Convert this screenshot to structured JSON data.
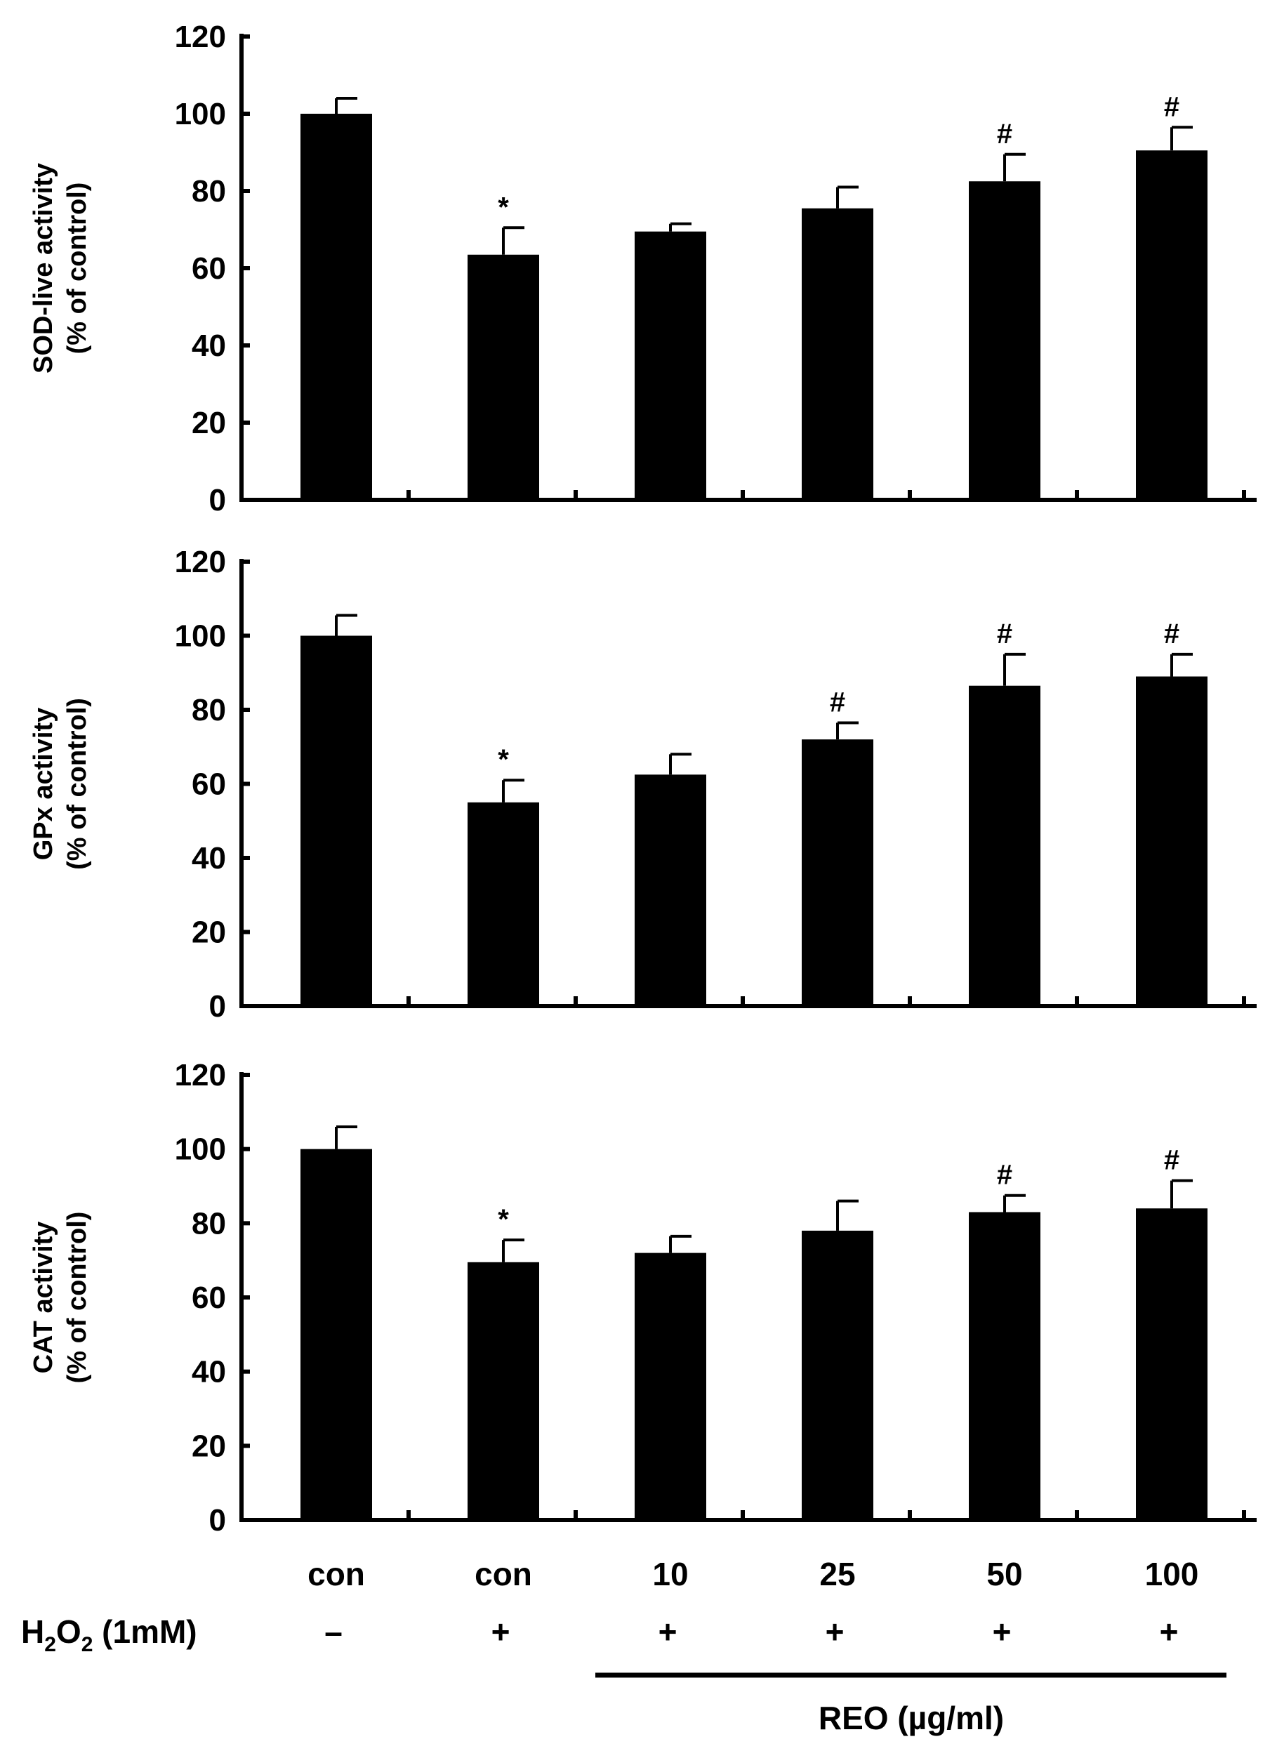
{
  "chart_data": [
    {
      "type": "bar",
      "ylabel_line1": "SOD-live activity",
      "ylabel_line2": "(% of control)",
      "ylim": [
        0,
        120
      ],
      "yticks": [
        0,
        20,
        40,
        60,
        80,
        100,
        120
      ],
      "categories": [
        "con",
        "con",
        "10",
        "25",
        "50",
        "100"
      ],
      "values": [
        100,
        63.5,
        69.5,
        75.5,
        82.5,
        90.5
      ],
      "errors": [
        4,
        7,
        2,
        5.5,
        7,
        6
      ],
      "annotations": [
        "",
        "*",
        "",
        "",
        "#",
        "#"
      ]
    },
    {
      "type": "bar",
      "ylabel_line1": "GPx  activity",
      "ylabel_line2": "(% of control)",
      "ylim": [
        0,
        120
      ],
      "yticks": [
        0,
        20,
        40,
        60,
        80,
        100,
        120
      ],
      "categories": [
        "con",
        "con",
        "10",
        "25",
        "50",
        "100"
      ],
      "values": [
        100,
        55,
        62.5,
        72,
        86.5,
        89
      ],
      "errors": [
        5.5,
        6,
        5.5,
        4.5,
        8.5,
        6
      ],
      "annotations": [
        "",
        "*",
        "",
        "#",
        "#",
        "#"
      ]
    },
    {
      "type": "bar",
      "ylabel_line1": "CAT activity",
      "ylabel_line2": "(% of control)",
      "ylim": [
        0,
        120
      ],
      "yticks": [
        0,
        20,
        40,
        60,
        80,
        100,
        120
      ],
      "categories": [
        "con",
        "con",
        "10",
        "25",
        "50",
        "100"
      ],
      "values": [
        100,
        69.5,
        72,
        78,
        83,
        84
      ],
      "errors": [
        6,
        6,
        4.5,
        8,
        4.5,
        7.5
      ],
      "annotations": [
        "",
        "*",
        "",
        "",
        "#",
        "#"
      ]
    }
  ],
  "x_axis": {
    "categories": [
      "con",
      "con",
      "10",
      "25",
      "50",
      "100"
    ],
    "h2o2_label_main": "H",
    "h2o2_label_sub1": "2",
    "h2o2_label_mid": "O",
    "h2o2_label_sub2": "2",
    "h2o2_label_rest": " (1mM)",
    "h2o2_signs": [
      "–",
      "+",
      "+",
      "+",
      "+",
      "+"
    ],
    "treatment_label": "REO (µg/ml)"
  },
  "colors": {
    "bar": "#000000",
    "axis": "#000000",
    "background": "#ffffff"
  }
}
